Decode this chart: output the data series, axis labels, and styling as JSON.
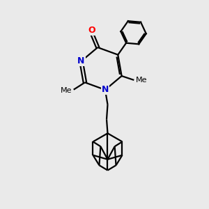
{
  "bg_color": "#eaeaea",
  "bond_color": "#000000",
  "nitrogen_color": "#0000cc",
  "oxygen_color": "#ff0000",
  "line_width": 1.6,
  "figsize": [
    3.0,
    3.0
  ],
  "dpi": 100,
  "xlim": [
    0,
    10
  ],
  "ylim": [
    0,
    10
  ]
}
